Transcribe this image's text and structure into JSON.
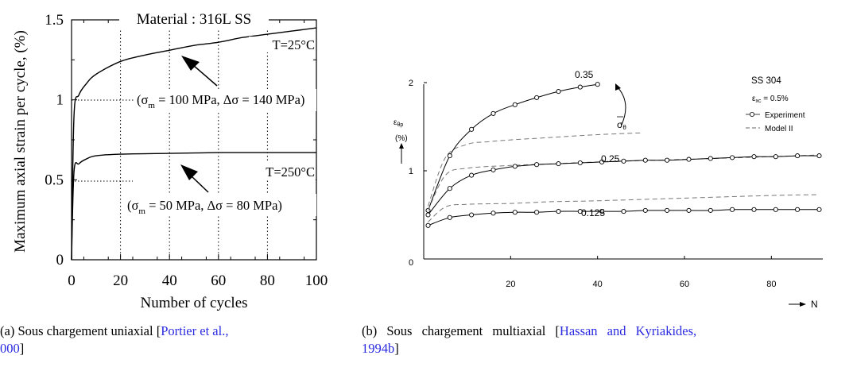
{
  "chart_data": [
    {
      "type": "line",
      "xlabel": "Number of cycles",
      "ylabel": "Maximum axial strain per cycle, (%)",
      "xlim": [
        0,
        100
      ],
      "ylim": [
        0,
        1.5
      ],
      "x_ticks": [
        "0",
        "20",
        "40",
        "60",
        "80",
        "100"
      ],
      "y_ticks": [
        "0",
        "0.5",
        "1",
        "1.5"
      ],
      "grid": "dotted vertical lines",
      "annotations": {
        "material": "Material : 316L SS",
        "t_high": "T=25°C",
        "t_low": "T=250°C",
        "load_high": "(σm = 100 MPa, Δσ = 140 MPa)",
        "load_low": "(σm = 50 MPa, Δσ = 80 MPa)"
      },
      "series": [
        {
          "x": [
            1,
            3,
            6,
            10,
            20,
            30,
            40,
            50,
            60,
            70,
            80,
            90,
            100
          ],
          "y": [
            0.9,
            1.03,
            1.1,
            1.16,
            1.24,
            1.28,
            1.31,
            1.34,
            1.36,
            1.39,
            1.41,
            1.43,
            1.45
          ]
        },
        {
          "x": [
            1,
            3,
            6,
            10,
            20,
            40,
            60,
            80,
            100
          ],
          "y": [
            0.55,
            0.6,
            0.63,
            0.65,
            0.66,
            0.665,
            0.67,
            0.67,
            0.67
          ]
        }
      ],
      "caption": {
        "text": "(a) Sous chargement uniaxial [",
        "ref": "Portier et al.,",
        "line2_ref": "000",
        "line2_end": "]"
      }
    },
    {
      "type": "line",
      "xlabel": "N",
      "ylabel": "εθp (%)",
      "xlim": [
        0,
        90
      ],
      "ylim": [
        0,
        2
      ],
      "x_ticks": [
        "0",
        "20",
        "40",
        "60",
        "80"
      ],
      "y_ticks": [
        "1",
        "2"
      ],
      "legend": {
        "title": "SS 304",
        "subtitle": "εxc = 0.5%",
        "experiment": "Experiment",
        "model": "Model II"
      },
      "sigma_label": "σθ",
      "series": [
        {
          "name": "0.35",
          "experiment": {
            "x": [
              1,
              6,
              11,
              16,
              21,
              26,
              31,
              36,
              40
            ],
            "y": [
              0.55,
              1.17,
              1.47,
              1.65,
              1.75,
              1.83,
              1.9,
              1.95,
              1.98
            ]
          },
          "model": {
            "x": [
              1,
              5,
              10,
              15,
              20,
              30,
              40,
              50
            ],
            "y": [
              0.6,
              1.15,
              1.3,
              1.33,
              1.35,
              1.38,
              1.41,
              1.43
            ]
          }
        },
        {
          "name": "0.25",
          "experiment": {
            "x": [
              1,
              6,
              11,
              16,
              21,
              26,
              31,
              36,
              41,
              46,
              51,
              56,
              61,
              66,
              71,
              76,
              81,
              86,
              91
            ],
            "y": [
              0.5,
              0.8,
              0.95,
              1.01,
              1.05,
              1.07,
              1.08,
              1.09,
              1.1,
              1.11,
              1.12,
              1.12,
              1.13,
              1.14,
              1.15,
              1.16,
              1.16,
              1.17,
              1.17
            ]
          },
          "model": {
            "x": [
              1,
              5,
              10,
              20,
              30,
              40,
              60,
              80,
              91
            ],
            "y": [
              0.55,
              0.95,
              1.03,
              1.06,
              1.08,
              1.1,
              1.13,
              1.16,
              1.18
            ]
          }
        },
        {
          "name": "0.125",
          "experiment": {
            "x": [
              1,
              6,
              11,
              16,
              21,
              26,
              31,
              36,
              41,
              46,
              51,
              56,
              61,
              66,
              71,
              76,
              81,
              86,
              91
            ],
            "y": [
              0.38,
              0.47,
              0.5,
              0.52,
              0.53,
              0.53,
              0.54,
              0.54,
              0.54,
              0.54,
              0.55,
              0.55,
              0.55,
              0.55,
              0.56,
              0.56,
              0.56,
              0.56,
              0.56
            ]
          },
          "model": {
            "x": [
              1,
              5,
              10,
              20,
              30,
              40,
              60,
              80,
              91
            ],
            "y": [
              0.42,
              0.59,
              0.62,
              0.63,
              0.65,
              0.66,
              0.69,
              0.72,
              0.73
            ]
          }
        }
      ],
      "caption": {
        "text": "(b) Sous chargement multiaxial [",
        "ref": "Hassan and Kyriakides,",
        "line2_ref": "1994b",
        "line2_end": "]"
      }
    }
  ]
}
